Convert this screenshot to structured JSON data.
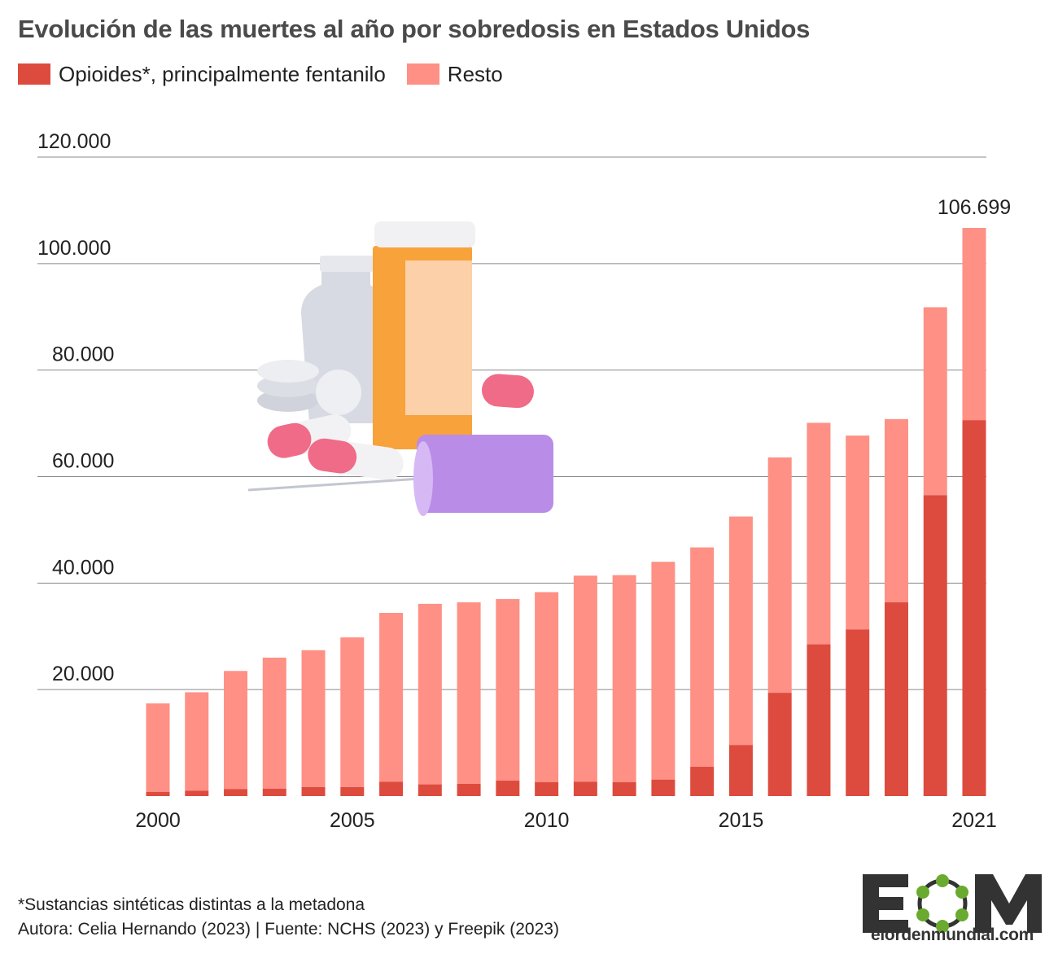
{
  "title": "Evolución de las muertes al año por sobredosis en Estados Unidos",
  "legend": [
    {
      "label": "Opioides*, principalmente fentanilo",
      "color": "#dd4b3e"
    },
    {
      "label": "Resto",
      "color": "#fe9085"
    }
  ],
  "chart_data": {
    "type": "bar",
    "stacked": true,
    "title": "Evolución de las muertes al año por sobredosis en Estados Unidos",
    "xlabel": "",
    "ylabel": "",
    "ylim": [
      0,
      120000
    ],
    "y_ticks": [
      "20.000",
      "40.000",
      "60.000",
      "80.000",
      "100.000",
      "120.000"
    ],
    "y_tick_values": [
      20000,
      40000,
      60000,
      80000,
      100000,
      120000
    ],
    "x_tick_labels": [
      "2000",
      "2005",
      "2010",
      "2015",
      "2021"
    ],
    "categories": [
      "2000",
      "2001",
      "2002",
      "2003",
      "2004",
      "2005",
      "2006",
      "2007",
      "2008",
      "2009",
      "2010",
      "2011",
      "2012",
      "2013",
      "2014",
      "2015",
      "2016",
      "2017",
      "2018",
      "2019",
      "2020",
      "2021"
    ],
    "series": [
      {
        "name": "Opioides*, principalmente fentanilo",
        "color": "#dd4b3e",
        "values": [
          800,
          1000,
          1300,
          1400,
          1700,
          1700,
          2700,
          2200,
          2300,
          2900,
          2600,
          2700,
          2600,
          3100,
          5500,
          9600,
          19400,
          28500,
          31300,
          36400,
          56500,
          70600
        ]
      },
      {
        "name": "Resto",
        "color": "#fe9085",
        "values": [
          16600,
          18500,
          22200,
          24600,
          25700,
          28100,
          31700,
          33900,
          34100,
          34100,
          35700,
          38700,
          38900,
          40900,
          41200,
          42900,
          44200,
          41600,
          36400,
          34400,
          35300,
          36099
        ]
      }
    ],
    "totals": [
      17400,
      19500,
      23500,
      26000,
      27400,
      29800,
      34400,
      36100,
      36400,
      37000,
      38300,
      41400,
      41500,
      44000,
      46700,
      52500,
      63600,
      70100,
      67700,
      70800,
      91800,
      106699
    ],
    "annotations": [
      {
        "category": "2021",
        "text": "106.699"
      }
    ],
    "grid": true,
    "legend_position": "top-left"
  },
  "footer": {
    "note": "*Sustancias sintéticas distintas a la metadona",
    "credits": "Autora: Celia Hernando (2023) | Fuente: NCHS (2023) y Freepik (2023)"
  },
  "brand": {
    "logo_text": "EOM",
    "url": "elordenmundial.com",
    "logo_color": "#333333",
    "logo_accent": "#6aaa2e"
  }
}
